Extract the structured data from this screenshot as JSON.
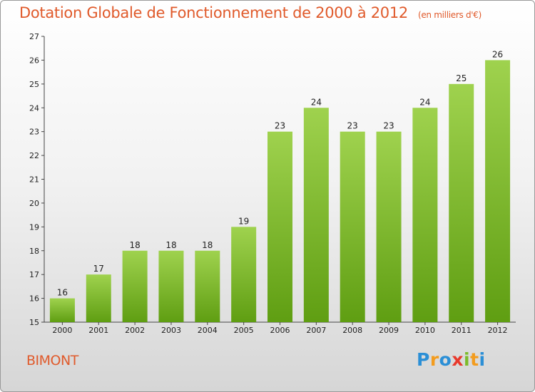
{
  "header": {
    "title": "Dotation Globale de Fonctionnement de 2000 à 2012",
    "subtitle": "(en milliers d'€)"
  },
  "commune": "BIMONT",
  "logo": {
    "letters": [
      {
        "ch": "P",
        "color": "#2b8fd6"
      },
      {
        "ch": "r",
        "color": "#f39c1e"
      },
      {
        "ch": "o",
        "color": "#2b8fd6"
      },
      {
        "ch": "x",
        "color": "#e8392c"
      },
      {
        "ch": "i",
        "color": "#7cbb2a"
      },
      {
        "ch": "t",
        "color": "#f39c1e"
      },
      {
        "ch": "i",
        "color": "#2b8fd6"
      }
    ]
  },
  "chart_data": {
    "type": "bar",
    "categories": [
      "2000",
      "2001",
      "2002",
      "2003",
      "2004",
      "2005",
      "2006",
      "2007",
      "2008",
      "2009",
      "2010",
      "2011",
      "2012"
    ],
    "values": [
      16,
      17,
      18,
      18,
      18,
      19,
      23,
      24,
      23,
      23,
      24,
      25,
      26
    ],
    "ylim": [
      15,
      27
    ],
    "yticks": [
      15,
      16,
      17,
      18,
      19,
      20,
      21,
      22,
      23,
      24,
      25,
      26,
      27
    ],
    "bar_color_top": "#9fd24e",
    "bar_color_bottom": "#5f9e12",
    "grid": false,
    "legend": "none"
  }
}
